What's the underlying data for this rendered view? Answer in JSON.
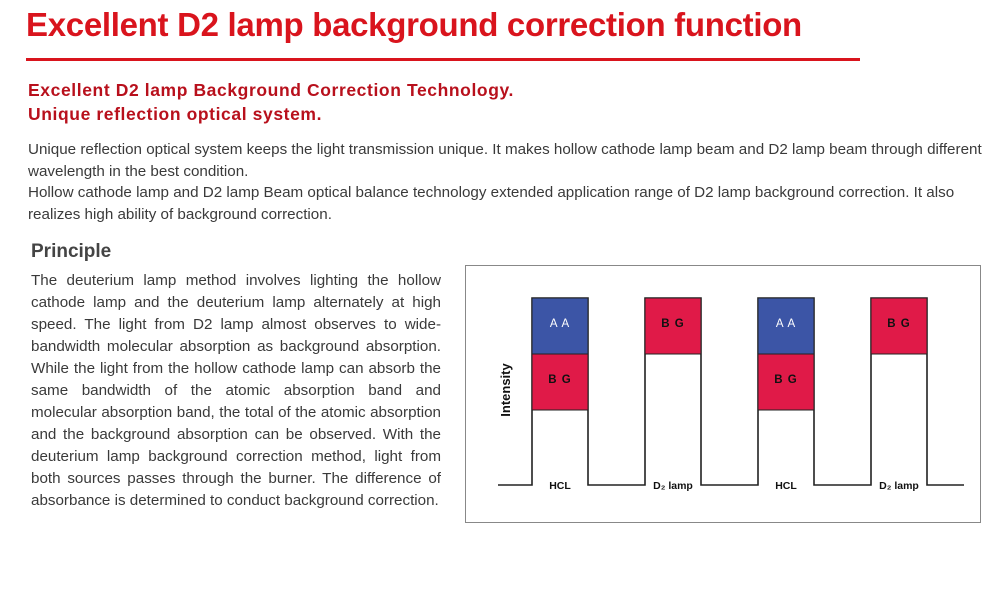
{
  "title": "Excellent D2 lamp background correction function",
  "subtitle_lines": [
    "Excellent D2 lamp Background Correction Technology.",
    "Unique reflection optical system."
  ],
  "intro_paragraphs": [
    "Unique reflection optical system keeps the light transmission unique. It makes hollow cathode lamp beam and D2 lamp beam through different wavelength in the best condition.",
    "Hollow cathode lamp and D2 lamp Beam optical balance technology extended application range of D2 lamp background correction. It also realizes high ability of background correction."
  ],
  "principle": {
    "heading": "Principle",
    "body": "The deuterium lamp method involves lighting the hollow cathode lamp and the deuterium lamp alternately at high speed. The light from D2 lamp almost observes to wide-bandwidth molecular absorption as background absorption. While the light from the hollow cathode lamp can absorb the same bandwidth of the atomic absorption band and molecular absorption band, the total of the atomic absorption and the background absorption can be observed. With the deuterium lamp background correction method, light from both sources passes through the burner. The difference of absorbance is determined to conduct background correction."
  },
  "diagram": {
    "y_label": "Intensity",
    "pulses": [
      {
        "label": "HCL",
        "blocks": [
          {
            "text": "A A",
            "kind": "aa"
          },
          {
            "text": "B G",
            "kind": "bg"
          }
        ]
      },
      {
        "label": "D₂ lamp",
        "blocks": [
          {
            "text": "B G",
            "kind": "bg"
          }
        ]
      },
      {
        "label": "HCL",
        "blocks": [
          {
            "text": "A A",
            "kind": "aa"
          },
          {
            "text": "B G",
            "kind": "bg"
          }
        ]
      },
      {
        "label": "D₂ lamp",
        "blocks": [
          {
            "text": "B G",
            "kind": "bg"
          }
        ]
      }
    ],
    "colors": {
      "aa": "#3c55a6",
      "bg": "#e01a48",
      "line": "#222222"
    }
  },
  "colors": {
    "accent": "#d9141d"
  }
}
